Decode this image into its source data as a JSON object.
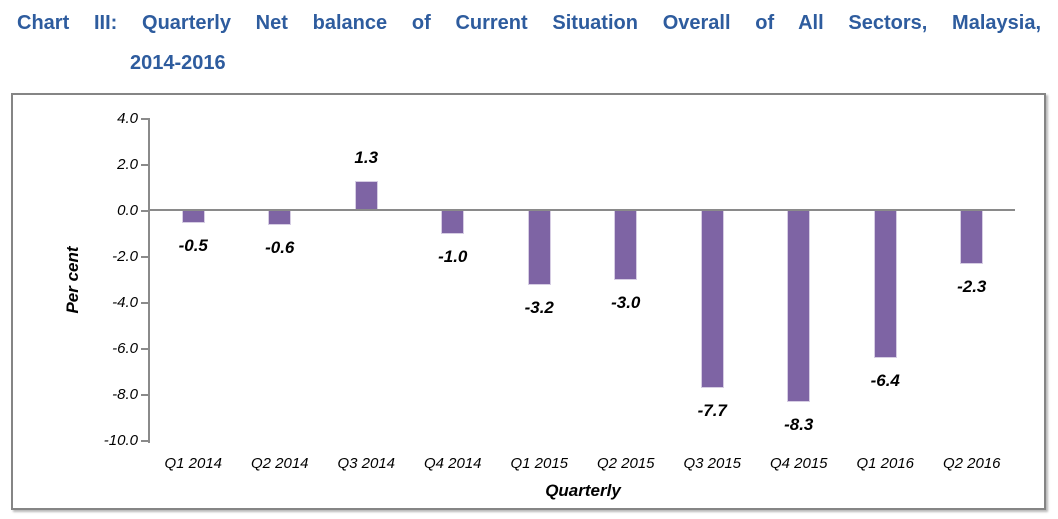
{
  "title": {
    "line1": "Chart III: Quarterly Net balance of Current Situation Overall of All Sectors, Malaysia,",
    "line2": "2014-2016",
    "color": "#2e5c9e"
  },
  "chart_data": {
    "type": "bar",
    "title": "Chart III: Quarterly Net balance of Current Situation Overall of All Sectors, Malaysia, 2014-2016",
    "categories": [
      "Q1 2014",
      "Q2 2014",
      "Q3 2014",
      "Q4 2014",
      "Q1 2015",
      "Q2 2015",
      "Q3 2015",
      "Q4 2015",
      "Q1 2016",
      "Q2 2016"
    ],
    "values": [
      -0.5,
      -0.6,
      1.3,
      -1.0,
      -3.2,
      -3.0,
      -7.7,
      -8.3,
      -6.4,
      -2.3
    ],
    "value_labels": [
      "-0.5",
      "-0.6",
      "1.3",
      "-1.0",
      "-3.2",
      "-3.0",
      "-7.7",
      "-8.3",
      "-6.4",
      "-2.3"
    ],
    "xlabel": "Quarterly",
    "ylabel": "Per cent",
    "ylim": [
      -10.0,
      4.0
    ],
    "ytick_step": 2.0,
    "yticks": [
      "4.0",
      "2.0",
      "0.0",
      "-2.0",
      "-4.0",
      "-6.0",
      "-8.0",
      "-10.0"
    ],
    "grid": false,
    "legend": "none",
    "bar_color": "#7e64a4",
    "axis_color": "#8a8a8a"
  }
}
